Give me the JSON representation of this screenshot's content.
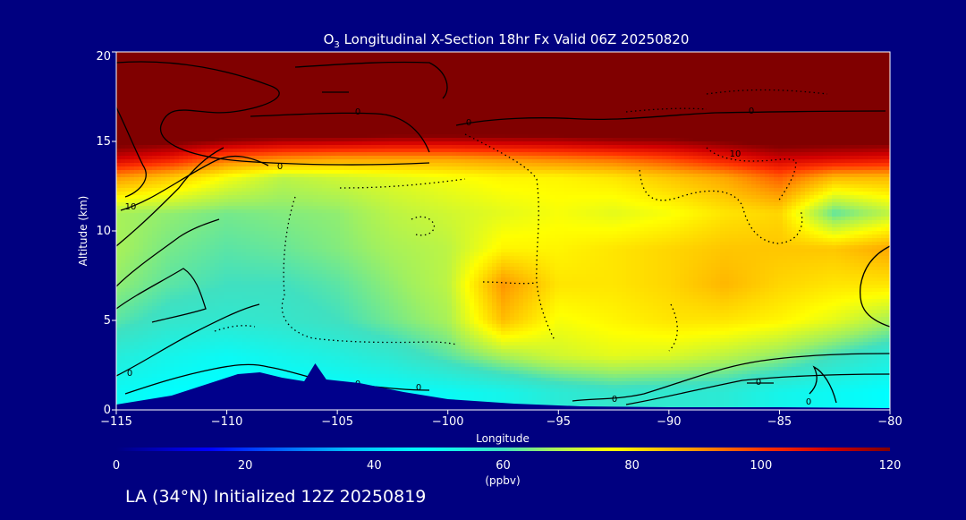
{
  "chart_data": {
    "type": "heatmap",
    "title_prefix": "O",
    "title_sub": "3",
    "title_rest": " Longitudinal X-Section 18hr  Fx Valid 06Z 20250820",
    "xlabel": "Longitude",
    "ylabel": "Altitude (km)",
    "xlim": [
      -115,
      -80
    ],
    "ylim": [
      0,
      20
    ],
    "x_ticks": [
      -115,
      -110,
      -105,
      -100,
      -95,
      -90,
      -85,
      -80
    ],
    "x_tick_labels": [
      "−115",
      "−110",
      "−105",
      "−100",
      "−95",
      "−90",
      "−85",
      "−80"
    ],
    "y_ticks": [
      0,
      5,
      10,
      15,
      20
    ],
    "y_tick_labels": [
      "0",
      "5",
      "10",
      "15",
      "20"
    ],
    "colorbar": {
      "min": 0,
      "max": 120,
      "units": "(ppbv)",
      "ticks": [
        0,
        20,
        40,
        60,
        80,
        100,
        120
      ],
      "tick_labels": [
        "0",
        "20",
        "40",
        "60",
        "80",
        "100",
        "120"
      ]
    },
    "z_units": "ppbv",
    "longitudes": [
      -115,
      -112.5,
      -110,
      -107.5,
      -105,
      -102.5,
      -100,
      -97.5,
      -95,
      -92.5,
      -90,
      -87.5,
      -85,
      -82.5,
      -80
    ],
    "altitudes_km": [
      1,
      3,
      5,
      7,
      9,
      11,
      13,
      14,
      15.5,
      18
    ],
    "ozone_ppbv": [
      [
        50,
        48,
        47,
        47,
        48,
        49,
        50,
        52,
        56,
        58,
        57,
        56,
        52,
        50,
        48
      ],
      [
        55,
        52,
        50,
        52,
        54,
        57,
        62,
        68,
        72,
        74,
        73,
        70,
        66,
        60,
        55
      ],
      [
        62,
        58,
        57,
        58,
        60,
        64,
        68,
        85,
        76,
        78,
        80,
        80,
        78,
        74,
        68
      ],
      [
        66,
        62,
        60,
        60,
        62,
        66,
        70,
        90,
        80,
        80,
        82,
        86,
        82,
        80,
        80
      ],
      [
        68,
        64,
        62,
        63,
        65,
        68,
        70,
        78,
        78,
        80,
        82,
        84,
        84,
        84,
        88
      ],
      [
        68,
        66,
        64,
        65,
        66,
        70,
        72,
        74,
        76,
        74,
        76,
        80,
        82,
        62,
        70
      ],
      [
        90,
        84,
        76,
        70,
        72,
        74,
        76,
        78,
        78,
        80,
        84,
        88,
        96,
        86,
        86
      ],
      [
        110,
        104,
        94,
        90,
        88,
        88,
        88,
        90,
        92,
        94,
        98,
        104,
        110,
        108,
        106
      ],
      [
        130,
        130,
        128,
        126,
        126,
        124,
        124,
        124,
        124,
        126,
        126,
        128,
        130,
        130,
        130
      ],
      [
        140,
        140,
        140,
        140,
        140,
        140,
        140,
        140,
        140,
        140,
        140,
        140,
        140,
        140,
        140
      ]
    ],
    "terrain_km": [
      [
        -115,
        0.3
      ],
      [
        -112.5,
        0.8
      ],
      [
        -111,
        1.4
      ],
      [
        -109.5,
        2.0
      ],
      [
        -108.5,
        2.1
      ],
      [
        -107.5,
        1.8
      ],
      [
        -106.5,
        1.6
      ],
      [
        -106,
        2.6
      ],
      [
        -105.5,
        1.7
      ],
      [
        -104,
        1.5
      ],
      [
        -102,
        1.0
      ],
      [
        -100,
        0.6
      ],
      [
        -97,
        0.35
      ],
      [
        -94,
        0.2
      ],
      [
        -90,
        0.15
      ],
      [
        -85,
        0.15
      ],
      [
        -80,
        0.1
      ]
    ],
    "contour_labels": [
      "0",
      "0",
      "0",
      "0",
      "0",
      "0",
      "0",
      "0",
      "0",
      "0",
      "10",
      "10"
    ]
  },
  "subtitle": "LA (34°N) Initialized 12Z 20250819",
  "colors": {
    "background": "#000080",
    "text": "#ffffff",
    "terrain": "#00008b"
  }
}
